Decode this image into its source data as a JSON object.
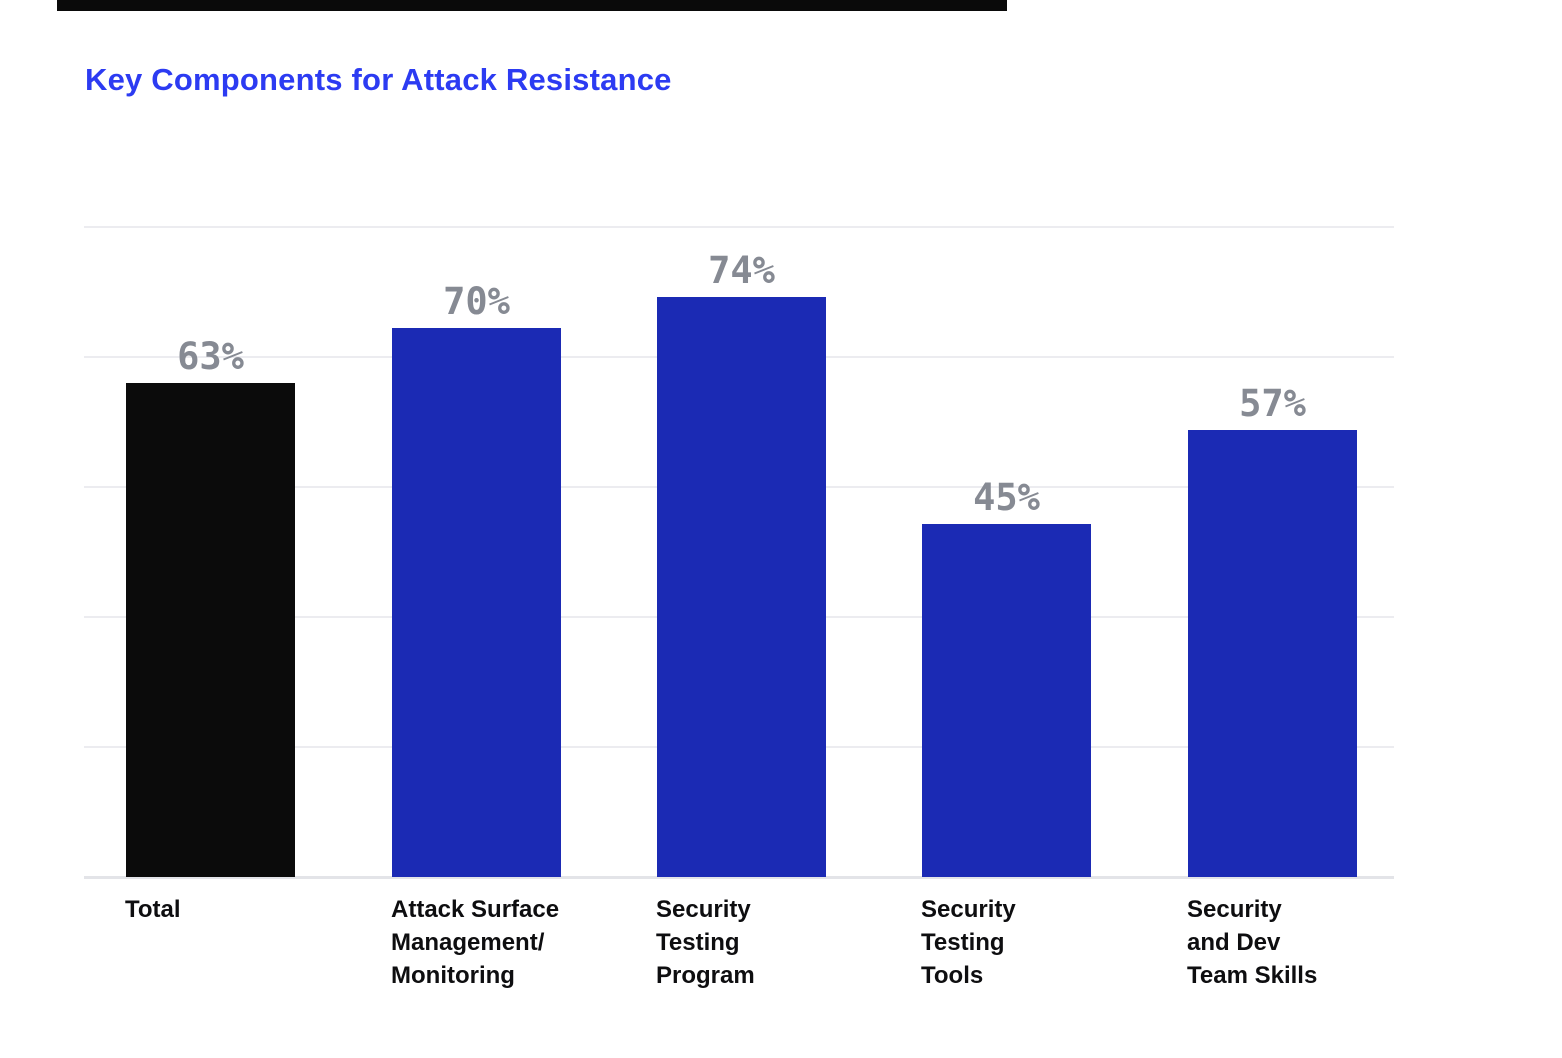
{
  "page": {
    "title": "Key Components for Attack Resistance"
  },
  "colors": {
    "title_blue": "#2c3bf2",
    "bar_blue": "#1b2ab4",
    "bar_black": "#0b0b0b",
    "value_label_gray": "#868a93",
    "gridline": "#ececf0",
    "baseline": "#e3e4e8",
    "category_text": "#0e0e10",
    "top_bar_black": "#0a0a0a",
    "background": "#ffffff"
  },
  "chart_data": {
    "type": "bar",
    "title": "Key Components for Attack Resistance",
    "unit": "%",
    "categories": [
      "Total",
      "Attack Surface Management/ Monitoring",
      "Security Testing Program",
      "Security Testing Tools",
      "Security and Dev Team Skills"
    ],
    "category_lines": [
      [
        "Total"
      ],
      [
        "Attack Surface",
        "Management/",
        "Monitoring"
      ],
      [
        "Security",
        "Testing",
        "Program"
      ],
      [
        "Security",
        "Testing",
        "Tools"
      ],
      [
        "Security",
        "and Dev",
        "Team Skills"
      ]
    ],
    "values": [
      63,
      70,
      74,
      45,
      57
    ],
    "value_labels": [
      "63%",
      "70%",
      "74%",
      "45%",
      "57%"
    ],
    "bar_colors": [
      "#0b0b0b",
      "#1b2ab4",
      "#1b2ab4",
      "#1b2ab4",
      "#1b2ab4"
    ],
    "ylim": [
      0,
      83
    ],
    "grid": "horizontal",
    "gridline_count": 6,
    "legend": "none",
    "xlabel": "",
    "ylabel": ""
  }
}
